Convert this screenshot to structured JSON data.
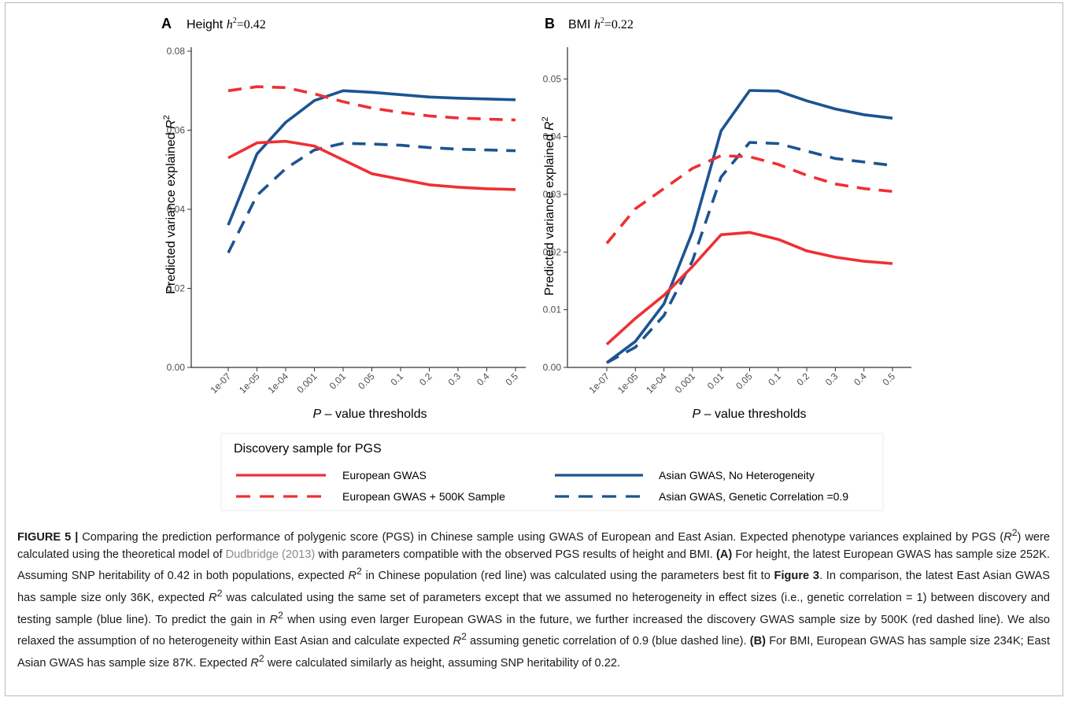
{
  "chart_data": [
    {
      "type": "line",
      "panel_letter": "A",
      "title_main": "Height ",
      "title_h": "h",
      "title_sup": "2",
      "title_val": "=0.42",
      "ylabel_main": "Predicted variance explained ",
      "ylabel_R": "R",
      "ylabel_sup": "2",
      "xlabel_P": "P",
      "xlabel_rest": " – value thresholds",
      "categories": [
        "1e-07",
        "1e-05",
        "1e-04",
        "0.001",
        "0.01",
        "0.05",
        "0.1",
        "0.2",
        "0.3",
        "0.4",
        "0.5"
      ],
      "ylim": [
        0,
        0.081
      ],
      "yticks": [
        "0.00",
        "0.02",
        "0.04",
        "0.06",
        "0.08"
      ],
      "grid": false,
      "series": [
        {
          "name": "European GWAS",
          "color": "#ee3034",
          "dash": false,
          "values": [
            0.053,
            0.0568,
            0.0572,
            0.056,
            0.0525,
            0.049,
            0.0476,
            0.0462,
            0.0456,
            0.0452,
            0.045
          ]
        },
        {
          "name": "European GWAS + 500K Sample",
          "color": "#ee3034",
          "dash": true,
          "values": [
            0.07,
            0.071,
            0.0708,
            0.0692,
            0.0672,
            0.0656,
            0.0645,
            0.0636,
            0.0631,
            0.0628,
            0.0626
          ]
        },
        {
          "name": "Asian GWAS, No Heterogeneity",
          "color": "#1c5490",
          "dash": false,
          "values": [
            0.036,
            0.054,
            0.062,
            0.0675,
            0.07,
            0.0696,
            0.069,
            0.0684,
            0.0681,
            0.0679,
            0.0677
          ]
        },
        {
          "name": "Asian GWAS, Genetic Correlation =0.9",
          "color": "#1c5490",
          "dash": true,
          "values": [
            0.029,
            0.0435,
            0.0503,
            0.055,
            0.0567,
            0.0565,
            0.0562,
            0.0556,
            0.0552,
            0.055,
            0.0548
          ]
        }
      ]
    },
    {
      "type": "line",
      "panel_letter": "B",
      "title_main": "BMI ",
      "title_h": "h",
      "title_sup": "2",
      "title_val": "=0.22",
      "ylabel_main": "Predicted variance explained ",
      "ylabel_R": "R",
      "ylabel_sup": "2",
      "xlabel_P": "P",
      "xlabel_rest": " – value thresholds",
      "categories": [
        "1e-07",
        "1e-05",
        "1e-04",
        "0.001",
        "0.01",
        "0.05",
        "0.1",
        "0.2",
        "0.3",
        "0.4",
        "0.5"
      ],
      "ylim": [
        0,
        0.0555
      ],
      "yticks": [
        "0.00",
        "0.01",
        "0.02",
        "0.03",
        "0.04",
        "0.05"
      ],
      "grid": false,
      "series": [
        {
          "name": "European GWAS",
          "color": "#ee3034",
          "dash": false,
          "values": [
            0.004,
            0.0085,
            0.0125,
            0.0175,
            0.023,
            0.0234,
            0.0222,
            0.0202,
            0.0191,
            0.0184,
            0.018
          ]
        },
        {
          "name": "European GWAS + 500K Sample",
          "color": "#ee3034",
          "dash": true,
          "values": [
            0.0215,
            0.0275,
            0.031,
            0.0345,
            0.0367,
            0.0365,
            0.0352,
            0.0333,
            0.0318,
            0.031,
            0.0305
          ]
        },
        {
          "name": "Asian GWAS, No Heterogeneity",
          "color": "#1c5490",
          "dash": false,
          "values": [
            0.0008,
            0.0045,
            0.011,
            0.0235,
            0.041,
            0.048,
            0.0479,
            0.0462,
            0.0448,
            0.0438,
            0.0432
          ]
        },
        {
          "name": "Asian GWAS, Genetic Correlation =0.9",
          "color": "#1c5490",
          "dash": true,
          "values": [
            0.0008,
            0.0035,
            0.009,
            0.0185,
            0.033,
            0.039,
            0.0388,
            0.0375,
            0.0362,
            0.0356,
            0.035
          ]
        }
      ]
    }
  ],
  "legend": {
    "title": "Discovery sample for PGS",
    "items": [
      {
        "label": "European GWAS",
        "color": "#ee3034",
        "dash": false
      },
      {
        "label": "European GWAS + 500K Sample",
        "color": "#ee3034",
        "dash": true
      },
      {
        "label": "Asian GWAS, No Heterogeneity",
        "color": "#1c5490",
        "dash": false
      },
      {
        "label": "Asian GWAS, Genetic Correlation =0.9",
        "color": "#1c5490",
        "dash": true
      }
    ]
  },
  "caption": {
    "label": "FIGURE 5 |",
    "s1": " Comparing the prediction performance of polygenic score (PGS) in Chinese sample using GWAS of European and East Asian. Expected phenotype variances explained by PGS (",
    "r": "R",
    "sup": "2",
    "s2": ") were calculated using the theoretical model of ",
    "ref": "Dudbridge (2013)",
    "s3": " with parameters compatible with the observed PGS results of height and BMI. ",
    "A": "(A)",
    "s4": " For height, the latest European GWAS has sample size 252K. Assuming SNP heritability of 0.42 in both populations, expected ",
    "s5": " in Chinese population (red line) was calculated using the parameters best fit to ",
    "fig3": "Figure 3",
    "s6": ". In comparison, the latest East Asian GWAS has sample size only 36K, expected ",
    "s7": " was calculated using the same set of parameters except that we assumed no heterogeneity in effect sizes (i.e., genetic correlation = 1) between discovery and testing sample (blue line). To predict the gain in ",
    "s8": " when using even larger European GWAS in the future, we further increased the discovery GWAS sample size by 500K (red dashed line). We also relaxed the assumption of no heterogeneity within East Asian and calculate expected ",
    "s9": " assuming genetic correlation of 0.9 (blue dashed line). ",
    "B": "(B)",
    "s10": " For BMI, European GWAS has sample size 234K; East Asian GWAS has sample size 87K. Expected ",
    "s11": " were calculated similarly as height, assuming SNP heritability of 0.22."
  }
}
